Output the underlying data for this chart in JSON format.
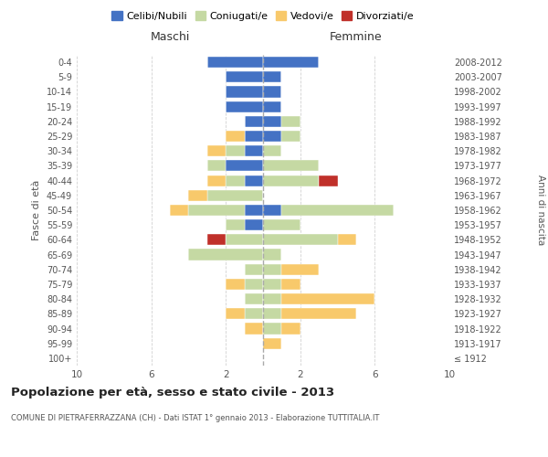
{
  "age_groups": [
    "100+",
    "95-99",
    "90-94",
    "85-89",
    "80-84",
    "75-79",
    "70-74",
    "65-69",
    "60-64",
    "55-59",
    "50-54",
    "45-49",
    "40-44",
    "35-39",
    "30-34",
    "25-29",
    "20-24",
    "15-19",
    "10-14",
    "5-9",
    "0-4"
  ],
  "birth_years": [
    "≤ 1912",
    "1913-1917",
    "1918-1922",
    "1923-1927",
    "1928-1932",
    "1933-1937",
    "1938-1942",
    "1943-1947",
    "1948-1952",
    "1953-1957",
    "1958-1962",
    "1963-1967",
    "1968-1972",
    "1973-1977",
    "1978-1982",
    "1983-1987",
    "1988-1992",
    "1993-1997",
    "1998-2002",
    "2003-2007",
    "2008-2012"
  ],
  "maschi": {
    "celibi": [
      0,
      0,
      0,
      0,
      0,
      0,
      0,
      0,
      0,
      1,
      1,
      0,
      1,
      2,
      1,
      1,
      1,
      2,
      2,
      2,
      3
    ],
    "coniugati": [
      0,
      0,
      0,
      1,
      1,
      1,
      1,
      4,
      2,
      1,
      3,
      3,
      1,
      1,
      1,
      0,
      0,
      0,
      0,
      0,
      0
    ],
    "vedovi": [
      0,
      0,
      1,
      1,
      0,
      1,
      0,
      0,
      0,
      0,
      1,
      1,
      1,
      0,
      1,
      1,
      0,
      0,
      0,
      0,
      0
    ],
    "divorziati": [
      0,
      0,
      0,
      0,
      0,
      0,
      0,
      0,
      1,
      0,
      0,
      0,
      0,
      0,
      0,
      0,
      0,
      0,
      0,
      0,
      0
    ]
  },
  "femmine": {
    "celibi": [
      0,
      0,
      0,
      0,
      0,
      0,
      0,
      0,
      0,
      0,
      1,
      0,
      0,
      0,
      0,
      1,
      1,
      1,
      1,
      1,
      3
    ],
    "coniugati": [
      0,
      0,
      1,
      1,
      1,
      1,
      1,
      1,
      4,
      2,
      6,
      0,
      3,
      3,
      1,
      1,
      1,
      0,
      0,
      0,
      0
    ],
    "vedovi": [
      0,
      1,
      1,
      4,
      5,
      1,
      2,
      0,
      1,
      0,
      0,
      0,
      0,
      0,
      0,
      0,
      0,
      0,
      0,
      0,
      0
    ],
    "divorziati": [
      0,
      0,
      0,
      0,
      0,
      0,
      0,
      0,
      0,
      0,
      0,
      0,
      1,
      0,
      0,
      0,
      0,
      0,
      0,
      0,
      0
    ]
  },
  "colors": {
    "celibi": "#4472c4",
    "coniugati": "#c5d9a3",
    "vedovi": "#f8c96b",
    "divorziati": "#c0302a"
  },
  "legend_labels": [
    "Celibi/Nubili",
    "Coniugati/e",
    "Vedovi/e",
    "Divorziati/e"
  ],
  "title": "Popolazione per età, sesso e stato civile - 2013",
  "subtitle": "COMUNE DI PIETRAFERRAZZANA (CH) - Dati ISTAT 1° gennaio 2013 - Elaborazione TUTTITALIA.IT",
  "ylabel_left": "Fasce di età",
  "ylabel_right": "Anni di nascita",
  "xlabel_left": "Maschi",
  "xlabel_right": "Femmine",
  "xlim": 10,
  "background_color": "#ffffff",
  "grid_color": "#cccccc"
}
